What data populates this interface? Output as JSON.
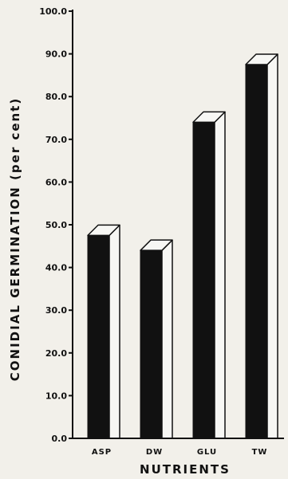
{
  "chart_data": {
    "type": "bar",
    "title": "",
    "xlabel": "NUTRIENTS",
    "ylabel": "CONIDIAL GERMINATION (per cent)",
    "categories": [
      "ASP",
      "DW",
      "GLU",
      "TW"
    ],
    "values": [
      47.5,
      44.0,
      74.0,
      87.5
    ],
    "ylim": [
      0,
      100
    ],
    "yticks": [
      "0.0",
      "10.0",
      "20.0",
      "30.0",
      "40.0",
      "50.0",
      "60.0",
      "70.0",
      "80.0",
      "90.0",
      "100.0"
    ],
    "grid": false,
    "legend": "none",
    "bar_style": "3d",
    "colors": {
      "bar_front": "#111111",
      "bar_side": "#f7f7f4",
      "axis": "#111111",
      "background": "#f2f0ea"
    }
  }
}
